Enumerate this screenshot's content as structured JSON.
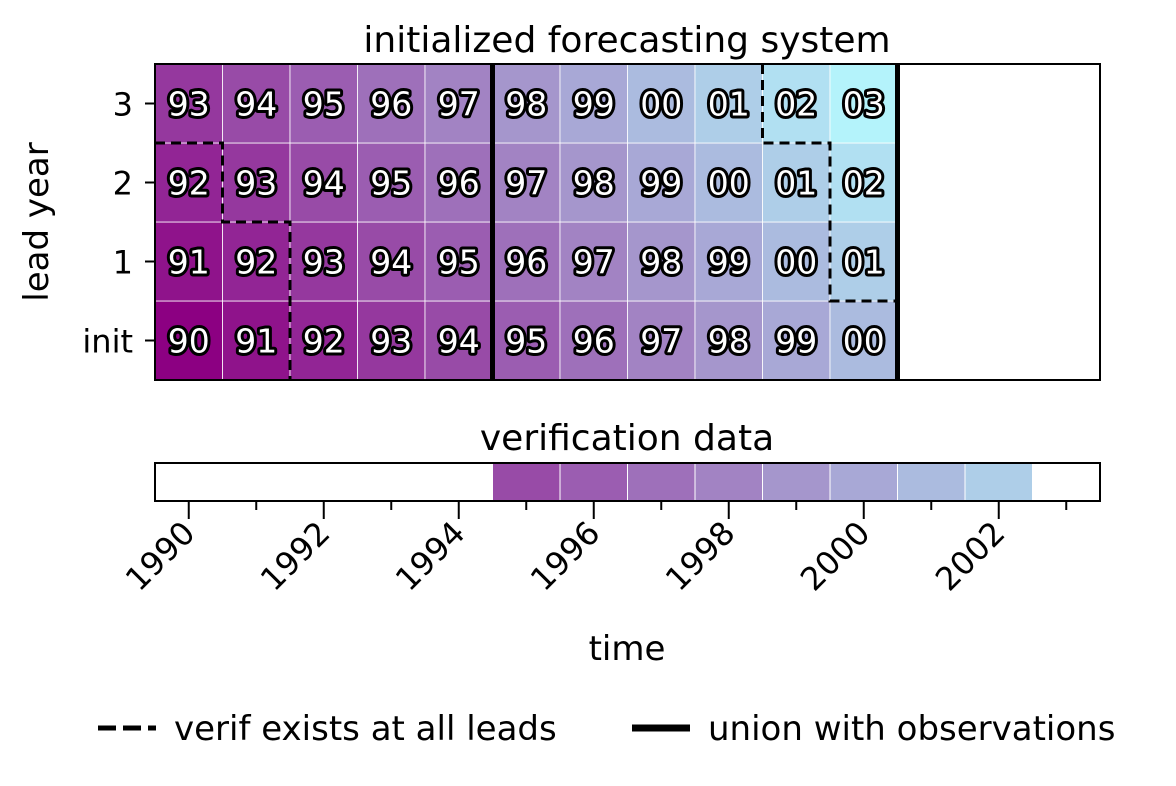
{
  "figure": {
    "top_title": "initialized forecasting system",
    "bottom_title": "verification data",
    "ylabel": "lead year",
    "xlabel": "time",
    "legend": [
      {
        "label": "verif exists at all leads",
        "style": "dashed"
      },
      {
        "label": "union with observations",
        "style": "solid"
      }
    ]
  },
  "chart_data": [
    {
      "type": "heatmap",
      "title": "initialized forecasting system",
      "ylabel": "lead year",
      "y_categories": [
        "init",
        "1",
        "2",
        "3"
      ],
      "x_range": [
        1989.5,
        2003.5
      ],
      "init_years": [
        1990,
        1991,
        1992,
        1993,
        1994,
        1995,
        1996,
        1997,
        1998,
        1999,
        2000
      ],
      "cells_text": [
        [
          "90",
          "91",
          "92",
          "93",
          "94",
          "95",
          "96",
          "97",
          "98",
          "99",
          "00"
        ],
        [
          "91",
          "92",
          "93",
          "94",
          "95",
          "96",
          "97",
          "98",
          "99",
          "00",
          "01"
        ],
        [
          "92",
          "93",
          "94",
          "95",
          "96",
          "97",
          "98",
          "99",
          "00",
          "01",
          "02"
        ],
        [
          "93",
          "94",
          "95",
          "96",
          "97",
          "98",
          "99",
          "00",
          "01",
          "02",
          "03"
        ]
      ],
      "union_bounds_years": [
        1994.5,
        2000.5
      ],
      "color_start": "#8c0082",
      "color_end": "#b4f3fb"
    },
    {
      "type": "heatmap",
      "title": "verification data",
      "xlabel": "time",
      "verif_years": [
        1995,
        1996,
        1997,
        1998,
        1999,
        2000,
        2001,
        2002
      ],
      "x_ticks": [
        "1990",
        "1992",
        "1994",
        "1996",
        "1998",
        "2000",
        "2002"
      ],
      "x_tick_values": [
        1990,
        1992,
        1994,
        1996,
        1998,
        2000,
        2002
      ],
      "x_range": [
        1989.5,
        2003.5
      ]
    }
  ]
}
